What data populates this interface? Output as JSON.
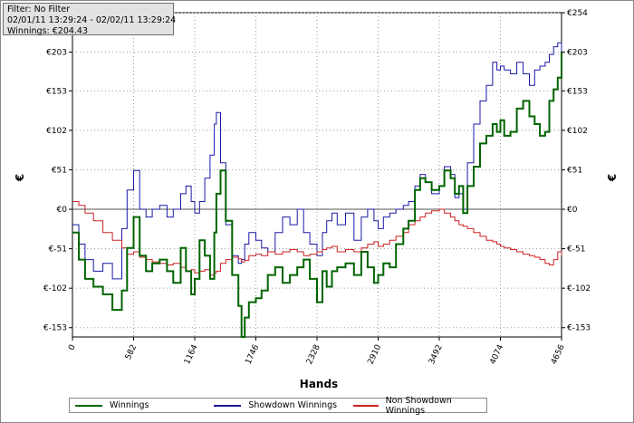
{
  "filter_box": {
    "filter_line": "Filter: No Filter",
    "date_range": "02/01/11 13:29:24 - 02/02/11 13:29:24",
    "winnings_line": "Winnings: €204.43"
  },
  "chart_data": {
    "type": "line",
    "xlabel": "Hands",
    "ylabel_left": "€",
    "ylabel_right": "€",
    "xlim": [
      0,
      4656
    ],
    "ylim": [
      -165,
      254
    ],
    "x_ticks": [
      0,
      582,
      1164,
      1746,
      2328,
      2910,
      3492,
      4074,
      4656
    ],
    "x_tick_labels": [
      "0",
      "582",
      "1164",
      "1746",
      "2328",
      "2910",
      "3492",
      "4074",
      "4656"
    ],
    "y_ticks": [
      -153,
      -102,
      -51,
      0,
      51,
      102,
      153,
      203,
      254
    ],
    "y_tick_labels_left": [
      "€-153",
      "€-102",
      "€-51",
      "€0",
      "€51",
      "€102",
      "€153",
      "€203",
      ""
    ],
    "y_tick_labels_right": [
      "€-153",
      "€-102",
      "€-51",
      "€0",
      "€51",
      "€102",
      "€153",
      "€203",
      "€254"
    ],
    "grid": true,
    "legend_position": "bottom",
    "series": [
      {
        "name": "Winnings",
        "color": "#006400",
        "x": [
          0,
          60,
          120,
          200,
          290,
          380,
          470,
          520,
          582,
          640,
          700,
          760,
          830,
          900,
          960,
          1030,
          1080,
          1130,
          1164,
          1210,
          1260,
          1310,
          1350,
          1370,
          1410,
          1460,
          1520,
          1580,
          1610,
          1640,
          1680,
          1746,
          1800,
          1860,
          1930,
          2000,
          2070,
          2140,
          2200,
          2260,
          2328,
          2380,
          2420,
          2470,
          2520,
          2600,
          2680,
          2750,
          2810,
          2870,
          2910,
          2960,
          3020,
          3080,
          3150,
          3200,
          3260,
          3310,
          3360,
          3420,
          3492,
          3540,
          3600,
          3640,
          3680,
          3720,
          3760,
          3820,
          3880,
          3940,
          4000,
          4040,
          4074,
          4110,
          4170,
          4230,
          4290,
          4350,
          4400,
          4450,
          4500,
          4540,
          4580,
          4620,
          4656
        ],
        "y": [
          -30,
          -65,
          -90,
          -100,
          -110,
          -130,
          -105,
          -50,
          -10,
          -60,
          -80,
          -70,
          -65,
          -80,
          -95,
          -50,
          -80,
          -110,
          -90,
          -40,
          -60,
          -90,
          -30,
          20,
          50,
          -15,
          -85,
          -125,
          -165,
          -140,
          -120,
          -115,
          -105,
          -85,
          -75,
          -95,
          -85,
          -75,
          -65,
          -90,
          -120,
          -80,
          -100,
          -80,
          -75,
          -70,
          -85,
          -55,
          -75,
          -95,
          -85,
          -70,
          -75,
          -45,
          -25,
          -15,
          25,
          40,
          35,
          25,
          30,
          50,
          40,
          20,
          30,
          -5,
          30,
          55,
          85,
          95,
          110,
          100,
          115,
          95,
          100,
          130,
          140,
          120,
          110,
          95,
          100,
          140,
          155,
          170,
          204
        ]
      },
      {
        "name": "Showdown Winnings",
        "color": "#1a1aa6",
        "x": [
          0,
          60,
          120,
          200,
          290,
          380,
          470,
          520,
          582,
          640,
          700,
          760,
          830,
          900,
          960,
          1030,
          1080,
          1130,
          1164,
          1210,
          1260,
          1310,
          1350,
          1370,
          1410,
          1460,
          1520,
          1580,
          1610,
          1640,
          1680,
          1746,
          1800,
          1860,
          1930,
          2000,
          2070,
          2140,
          2200,
          2260,
          2328,
          2380,
          2420,
          2470,
          2520,
          2600,
          2680,
          2750,
          2810,
          2870,
          2910,
          2960,
          3020,
          3080,
          3150,
          3200,
          3260,
          3310,
          3360,
          3420,
          3492,
          3540,
          3600,
          3640,
          3680,
          3720,
          3760,
          3820,
          3880,
          3940,
          4000,
          4040,
          4074,
          4110,
          4170,
          4230,
          4290,
          4350,
          4400,
          4450,
          4500,
          4540,
          4580,
          4620,
          4656
        ],
        "y": [
          -20,
          -45,
          -65,
          -80,
          -70,
          -90,
          -25,
          25,
          50,
          0,
          -10,
          0,
          5,
          -10,
          0,
          20,
          30,
          10,
          -5,
          10,
          40,
          70,
          110,
          125,
          60,
          -20,
          -60,
          -70,
          -65,
          -45,
          -30,
          -40,
          -50,
          -55,
          -30,
          -10,
          -20,
          0,
          -30,
          -45,
          -60,
          -30,
          -15,
          -5,
          -20,
          -5,
          -40,
          -10,
          0,
          -15,
          -25,
          -10,
          -5,
          0,
          5,
          10,
          30,
          45,
          35,
          20,
          30,
          55,
          45,
          15,
          20,
          0,
          60,
          110,
          140,
          160,
          190,
          180,
          185,
          180,
          175,
          190,
          175,
          160,
          180,
          185,
          190,
          200,
          210,
          215,
          204
        ]
      },
      {
        "name": "Non Showdown Winnings",
        "color": "#cc2222",
        "x": [
          0,
          60,
          120,
          200,
          290,
          380,
          470,
          520,
          582,
          640,
          700,
          760,
          830,
          900,
          960,
          1030,
          1080,
          1130,
          1164,
          1210,
          1260,
          1310,
          1350,
          1370,
          1410,
          1460,
          1520,
          1580,
          1610,
          1640,
          1680,
          1746,
          1800,
          1860,
          1930,
          2000,
          2070,
          2140,
          2200,
          2260,
          2328,
          2380,
          2420,
          2470,
          2520,
          2600,
          2680,
          2750,
          2810,
          2870,
          2910,
          2960,
          3020,
          3080,
          3150,
          3200,
          3260,
          3310,
          3360,
          3420,
          3492,
          3540,
          3600,
          3640,
          3680,
          3720,
          3760,
          3820,
          3880,
          3940,
          4000,
          4040,
          4074,
          4110,
          4170,
          4230,
          4290,
          4350,
          4400,
          4450,
          4500,
          4540,
          4580,
          4620,
          4656
        ],
        "y": [
          10,
          5,
          -5,
          -15,
          -30,
          -40,
          -50,
          -58,
          -55,
          -62,
          -65,
          -68,
          -70,
          -72,
          -70,
          -75,
          -80,
          -78,
          -82,
          -80,
          -78,
          -85,
          -82,
          -80,
          -70,
          -65,
          -62,
          -64,
          -68,
          -66,
          -60,
          -58,
          -60,
          -55,
          -58,
          -55,
          -52,
          -55,
          -60,
          -58,
          -55,
          -52,
          -50,
          -48,
          -55,
          -52,
          -55,
          -50,
          -45,
          -42,
          -48,
          -45,
          -40,
          -35,
          -30,
          -20,
          -15,
          -10,
          -5,
          -2,
          0,
          -5,
          -10,
          -15,
          -20,
          -22,
          -25,
          -30,
          -35,
          -40,
          -42,
          -45,
          -48,
          -50,
          -52,
          -55,
          -58,
          -60,
          -62,
          -65,
          -70,
          -72,
          -65,
          -55,
          -60
        ]
      }
    ]
  }
}
